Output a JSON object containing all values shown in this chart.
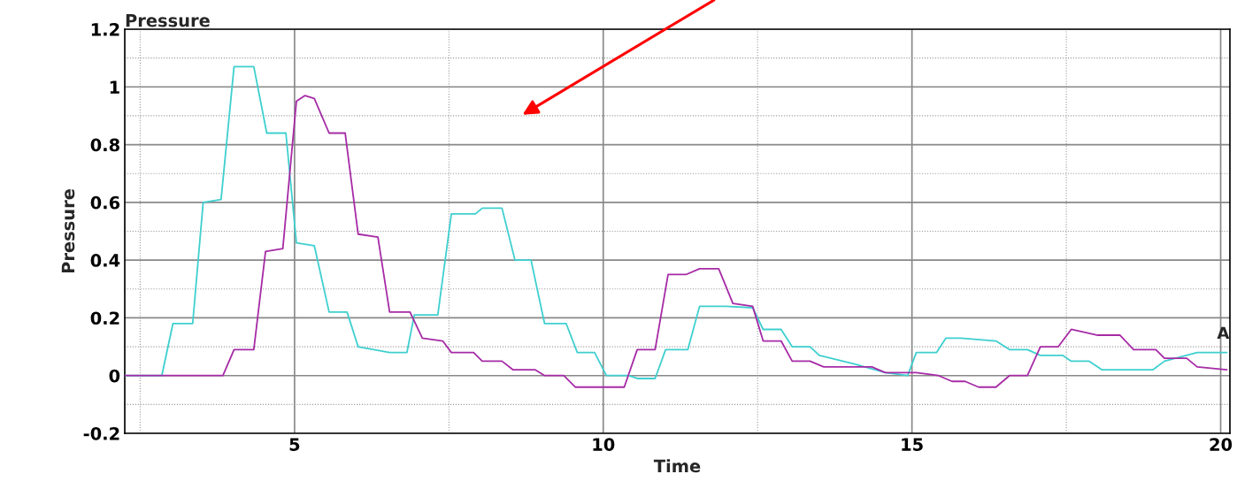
{
  "chart_data": {
    "type": "line",
    "title": "Pressure",
    "xlabel": "Time",
    "ylabel": "Pressure",
    "xlim": [
      2.25,
      20.15
    ],
    "ylim": [
      -0.2,
      1.2
    ],
    "xticks": [
      {
        "value": 2.5,
        "label": null
      },
      5,
      {
        "value": 7.5,
        "label": null
      },
      10,
      {
        "value": 12.5,
        "label": null
      },
      15,
      {
        "value": 17.5,
        "label": null
      },
      20
    ],
    "yticks": [
      -0.2,
      {
        "value": -0.1,
        "label": null
      },
      0,
      {
        "value": 0.1,
        "label": null
      },
      0.2,
      {
        "value": 0.3,
        "label": null
      },
      0.4,
      {
        "value": 0.5,
        "label": null
      },
      0.6,
      {
        "value": 0.7,
        "label": null
      },
      0.8,
      {
        "value": 0.9,
        "label": null
      },
      1,
      {
        "value": 1.1,
        "label": null
      },
      1.2
    ],
    "grid": true,
    "marker": "none",
    "line_style": "solid",
    "annotations": [
      "A"
    ],
    "series": [
      {
        "color": "#3fcfcf",
        "x": [
          2.25,
          2.85,
          3.03,
          3.35,
          3.52,
          3.81,
          4.02,
          4.34,
          4.55,
          4.86,
          5.03,
          5.32,
          5.56,
          5.85,
          6.03,
          6.54,
          6.82,
          6.94,
          7.32,
          7.54,
          7.93,
          8.04,
          8.36,
          8.57,
          8.83,
          9.05,
          9.4,
          9.58,
          9.86,
          10.05,
          10.41,
          10.55,
          10.84,
          11.01,
          11.37,
          11.56,
          11.99,
          12.42,
          12.59,
          12.88,
          13.06,
          13.35,
          13.5,
          14.07,
          14.57,
          14.93,
          15.07,
          15.4,
          15.55,
          15.79,
          16.36,
          16.58,
          16.87,
          17.08,
          17.44,
          17.58,
          17.87,
          18.08,
          18.9,
          19.09,
          19.62,
          20.1
        ],
        "values": [
          0,
          0,
          0.18,
          0.18,
          0.6,
          0.61,
          1.07,
          1.07,
          0.84,
          0.84,
          0.46,
          0.45,
          0.22,
          0.22,
          0.1,
          0.08,
          0.08,
          0.21,
          0.21,
          0.56,
          0.56,
          0.58,
          0.58,
          0.4,
          0.4,
          0.18,
          0.18,
          0.08,
          0.08,
          0,
          0,
          -0.01,
          -0.01,
          0.09,
          0.09,
          0.24,
          0.24,
          0.235,
          0.16,
          0.16,
          0.1,
          0.1,
          0.07,
          0.04,
          0.01,
          0,
          0.08,
          0.08,
          0.13,
          0.13,
          0.12,
          0.09,
          0.09,
          0.07,
          0.07,
          0.05,
          0.05,
          0.02,
          0.02,
          0.05,
          0.08,
          0.08
        ]
      },
      {
        "color": "#a62ba6",
        "x": [
          2.25,
          3.84,
          4.02,
          4.34,
          4.53,
          4.81,
          5.03,
          5.17,
          5.32,
          5.56,
          5.82,
          6.03,
          6.35,
          6.54,
          6.87,
          7.07,
          7.4,
          7.54,
          7.9,
          8.04,
          8.36,
          8.54,
          8.9,
          9.05,
          9.36,
          9.55,
          10.34,
          10.55,
          10.84,
          11.05,
          11.34,
          11.56,
          11.87,
          12.1,
          12.42,
          12.59,
          12.88,
          13.06,
          13.35,
          13.57,
          14.35,
          14.57,
          15.07,
          15.43,
          15.65,
          15.86,
          16.08,
          16.36,
          16.58,
          16.87,
          17.08,
          17.37,
          17.58,
          18.01,
          18.37,
          18.59,
          18.95,
          19.09,
          19.45,
          19.62,
          20.1
        ],
        "values": [
          0,
          0,
          0.09,
          0.09,
          0.43,
          0.44,
          0.95,
          0.97,
          0.96,
          0.84,
          0.84,
          0.49,
          0.48,
          0.22,
          0.22,
          0.13,
          0.12,
          0.08,
          0.08,
          0.05,
          0.05,
          0.02,
          0.02,
          0,
          0,
          -0.04,
          -0.04,
          0.09,
          0.09,
          0.35,
          0.35,
          0.37,
          0.37,
          0.25,
          0.24,
          0.12,
          0.12,
          0.05,
          0.05,
          0.03,
          0.03,
          0.01,
          0.01,
          0,
          -0.02,
          -0.02,
          -0.04,
          -0.04,
          0,
          0,
          0.1,
          0.1,
          0.16,
          0.14,
          0.14,
          0.09,
          0.09,
          0.06,
          0.06,
          0.03,
          0.02
        ]
      }
    ]
  }
}
